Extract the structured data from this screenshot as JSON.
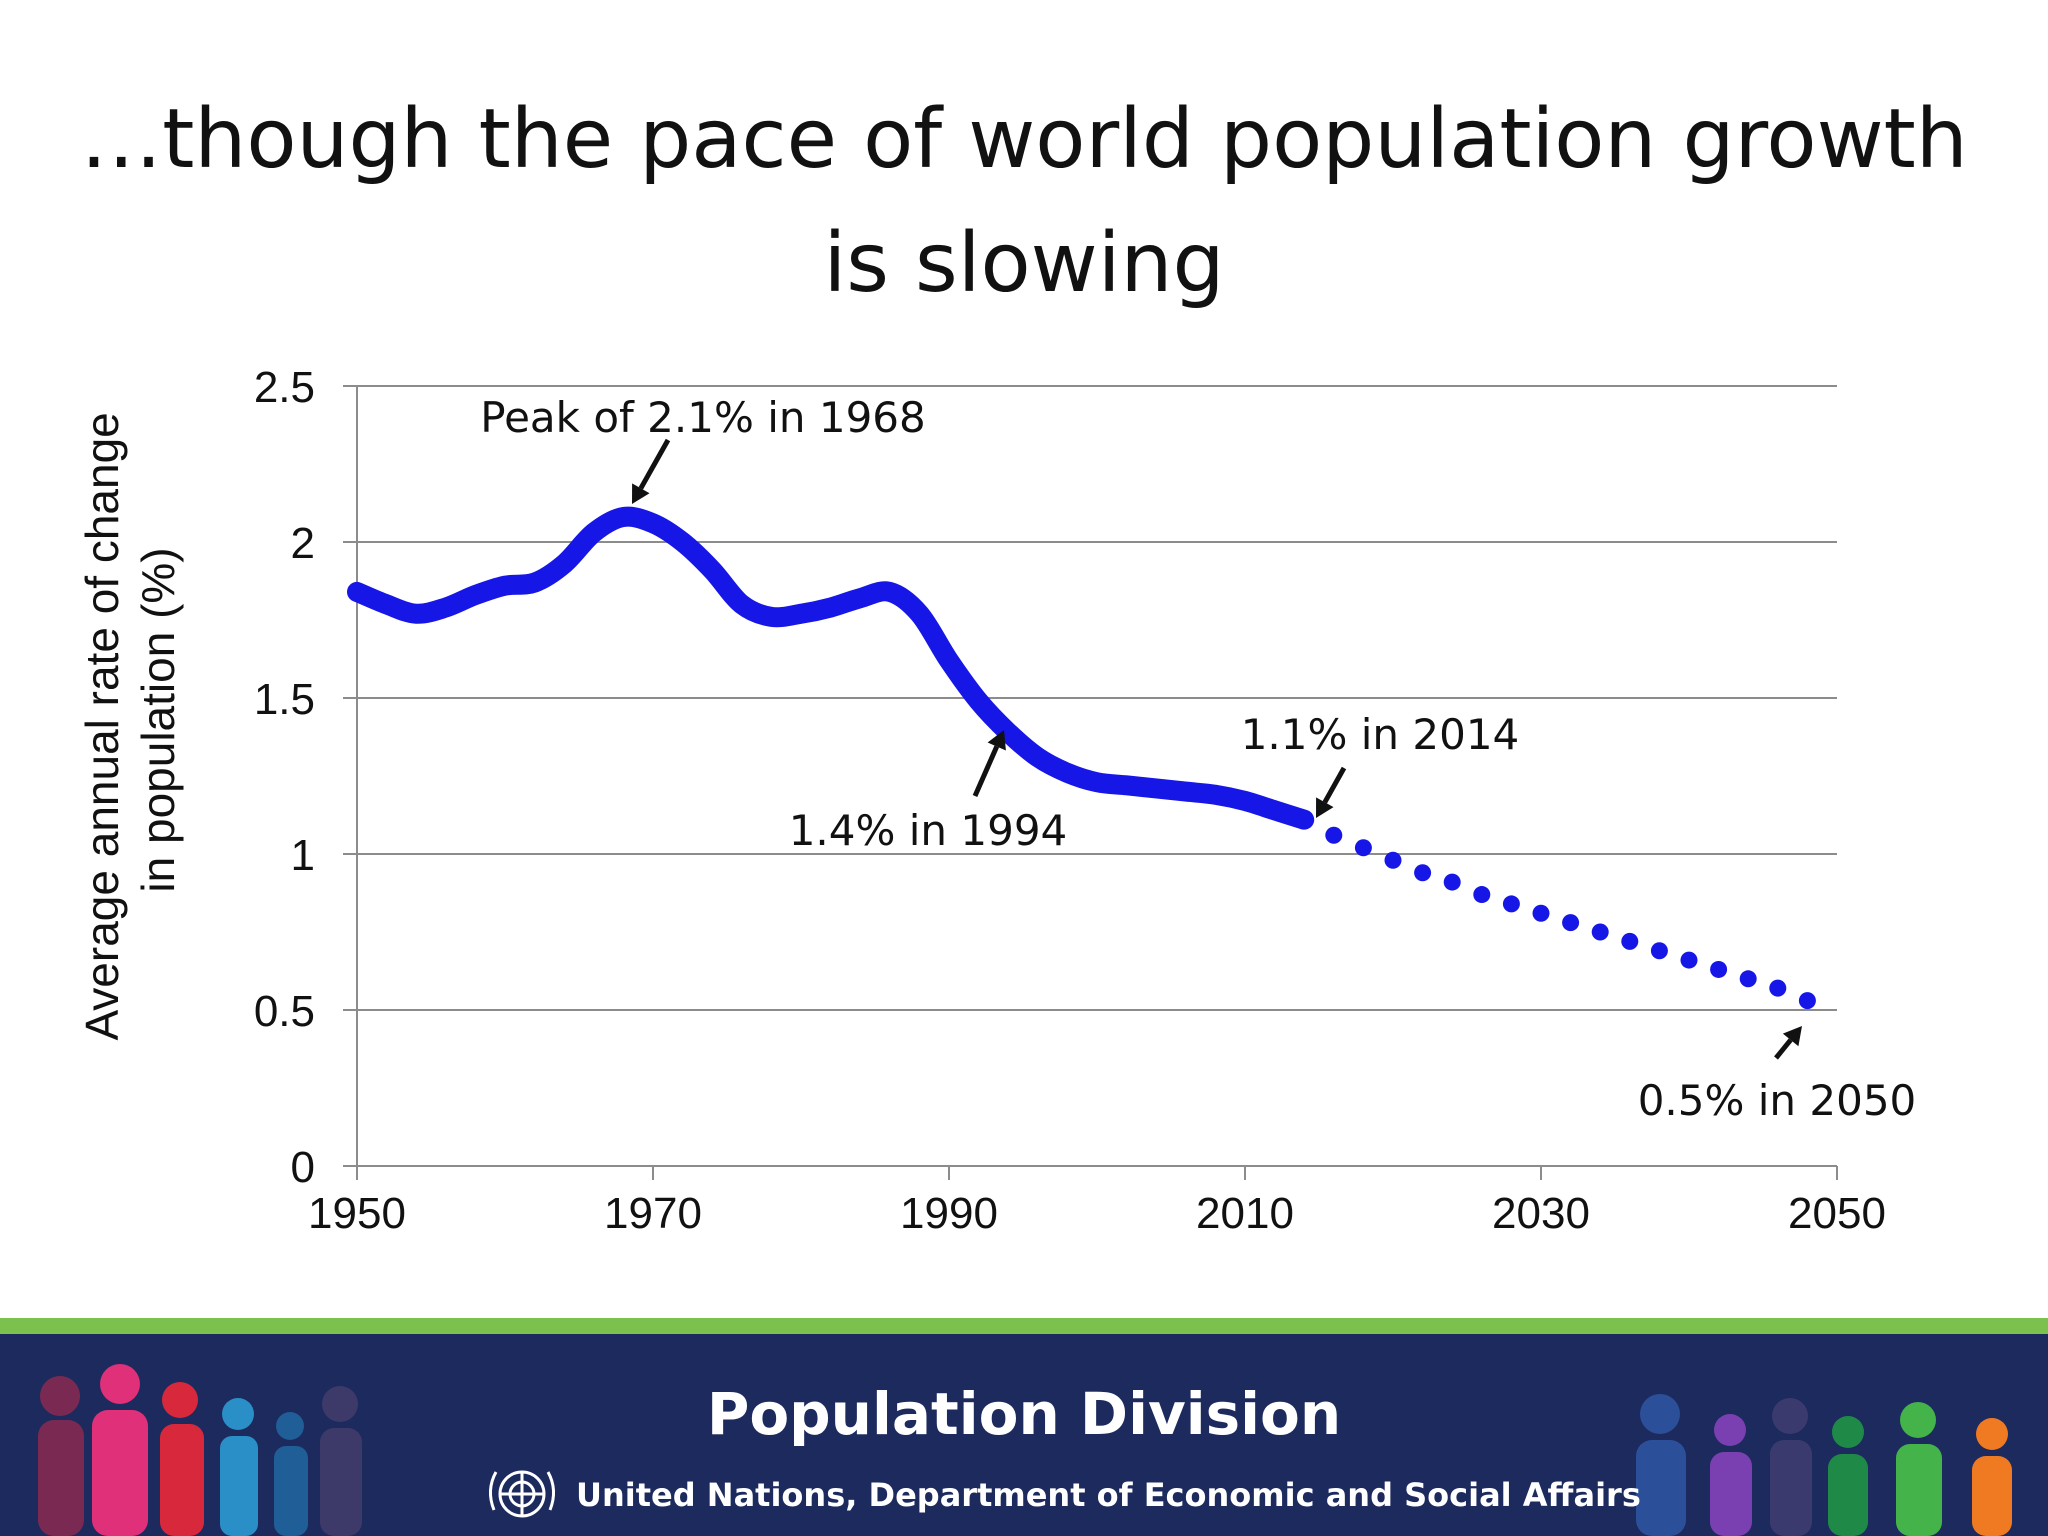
{
  "slide": {
    "title_line1": "…though the pace of world population growth",
    "title_line2": "is slowing"
  },
  "chart_data": {
    "type": "line",
    "title": "",
    "xlabel": "",
    "ylabel": "Average annual rate of change in population (%)",
    "ylabel_lines": [
      "Average annual rate of change",
      "in population (%)"
    ],
    "xlim": [
      1950,
      2050
    ],
    "ylim": [
      0,
      2.5
    ],
    "x_ticks": [
      "1950",
      "1970",
      "1990",
      "2010",
      "2030",
      "2050"
    ],
    "y_ticks": [
      "0",
      "0.5",
      "1",
      "1.5",
      "2",
      "2.5"
    ],
    "grid": true,
    "legend": "none",
    "series": [
      {
        "style": "solid",
        "color": "#1616e6",
        "x": [
          1950,
          1952,
          1954,
          1956,
          1958,
          1960,
          1962,
          1964,
          1966,
          1968,
          1970,
          1972,
          1974,
          1976,
          1978,
          1980,
          1982,
          1984,
          1986,
          1988,
          1990,
          1992,
          1994,
          1996,
          1998,
          2000,
          2002,
          2004,
          2006,
          2008,
          2010,
          2012,
          2014
        ],
        "values": [
          1.84,
          1.8,
          1.77,
          1.79,
          1.83,
          1.86,
          1.87,
          1.93,
          2.03,
          2.08,
          2.06,
          2.0,
          1.91,
          1.8,
          1.76,
          1.77,
          1.79,
          1.82,
          1.84,
          1.77,
          1.62,
          1.49,
          1.39,
          1.31,
          1.26,
          1.23,
          1.22,
          1.21,
          1.2,
          1.19,
          1.17,
          1.14,
          1.11
        ]
      },
      {
        "style": "dotted",
        "color": "#1616e6",
        "x": [
          2014,
          2016,
          2018,
          2020,
          2022,
          2024,
          2026,
          2028,
          2030,
          2032,
          2034,
          2036,
          2038,
          2040,
          2042,
          2044,
          2046,
          2048
        ],
        "values": [
          1.11,
          1.06,
          1.02,
          0.98,
          0.94,
          0.91,
          0.87,
          0.84,
          0.81,
          0.78,
          0.75,
          0.72,
          0.69,
          0.66,
          0.63,
          0.6,
          0.57,
          0.53
        ]
      }
    ],
    "annotations": [
      {
        "text": "Peak of 2.1% in 1968",
        "x": 1968,
        "y": 2.08
      },
      {
        "text": "1.4% in 1994",
        "x": 1994,
        "y": 1.39
      },
      {
        "text": "1.1% in 2014",
        "x": 2014,
        "y": 1.11
      },
      {
        "text": "0.5% in 2050",
        "x": 2050,
        "y": 0.5
      }
    ]
  },
  "footer": {
    "title": "Population Division",
    "subtitle": "United Nations, Department of Economic and Social Affairs",
    "stripe_color": "#7cc14e",
    "band_color": "#1c2a5e"
  }
}
